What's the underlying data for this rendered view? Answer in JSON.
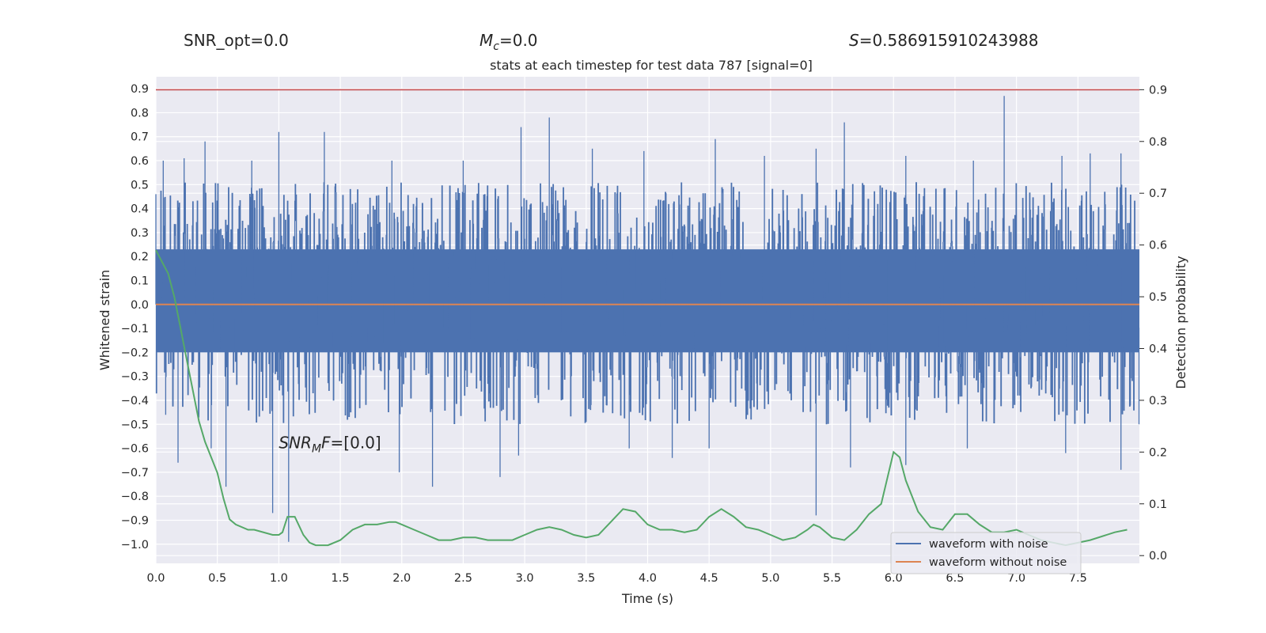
{
  "header": {
    "snr_opt": "SNR_opt=0.0",
    "mc_symbol": "M",
    "mc_sub": "c",
    "mc_value": "=0.0",
    "s_symbol": "S",
    "s_value": "=0.586915910243988"
  },
  "chart_data": {
    "type": "line",
    "title": "stats at each timestep for test data 787 [signal=0]",
    "xlabel": "Time (s)",
    "ylabel": "Whitened strain",
    "y2label": "Detection probability",
    "xlim": [
      0.0,
      8.0
    ],
    "ylim": [
      -1.08,
      0.95
    ],
    "y2lim": [
      -0.015,
      0.925
    ],
    "xticks": [
      "0.0",
      "0.5",
      "1.0",
      "1.5",
      "2.0",
      "2.5",
      "3.0",
      "3.5",
      "4.0",
      "4.5",
      "5.0",
      "5.5",
      "6.0",
      "6.5",
      "7.0",
      "7.5"
    ],
    "yticks": [
      "0.9",
      "0.8",
      "0.7",
      "0.6",
      "0.5",
      "0.4",
      "0.3",
      "0.2",
      "0.1",
      "0.0",
      "-0.1",
      "-0.2",
      "-0.3",
      "-0.4",
      "-0.5",
      "-0.6",
      "-0.7",
      "-0.8",
      "-0.9",
      "-1.0"
    ],
    "y2ticks": [
      "0.9",
      "0.8",
      "0.7",
      "0.6",
      "0.5",
      "0.4",
      "0.3",
      "0.2",
      "0.1",
      "0.0"
    ],
    "grid": true,
    "legend_position": "lower-right",
    "annotation": {
      "base": "SNR",
      "sub": "M",
      "italic_tail": "F",
      "value": "=[0.0]"
    },
    "series": [
      {
        "name": "waveform with noise",
        "color": "#4c72b0",
        "axis": "left",
        "description": "dense noise samples, core band about -0.2 to 0.23",
        "band": [
          -0.2,
          0.23
        ],
        "peaks_up": [
          [
            0.0,
            0.46
          ],
          [
            0.06,
            0.6
          ],
          [
            0.23,
            0.61
          ],
          [
            0.4,
            0.68
          ],
          [
            0.78,
            0.6
          ],
          [
            1.0,
            0.72
          ],
          [
            1.37,
            0.72
          ],
          [
            1.92,
            0.6
          ],
          [
            2.5,
            0.6
          ],
          [
            2.97,
            0.74
          ],
          [
            3.2,
            0.78
          ],
          [
            3.55,
            0.65
          ],
          [
            3.97,
            0.64
          ],
          [
            4.55,
            0.69
          ],
          [
            4.95,
            0.62
          ],
          [
            5.37,
            0.65
          ],
          [
            5.6,
            0.76
          ],
          [
            6.1,
            0.62
          ],
          [
            6.65,
            0.6
          ],
          [
            6.9,
            0.87
          ],
          [
            7.37,
            0.62
          ],
          [
            7.6,
            0.63
          ],
          [
            7.85,
            0.63
          ]
        ],
        "peaks_down": [
          [
            0.08,
            -0.46
          ],
          [
            0.18,
            -0.66
          ],
          [
            0.45,
            -0.6
          ],
          [
            0.57,
            -0.76
          ],
          [
            0.95,
            -0.87
          ],
          [
            1.08,
            -0.99
          ],
          [
            1.98,
            -0.7
          ],
          [
            2.25,
            -0.76
          ],
          [
            2.8,
            -0.72
          ],
          [
            2.95,
            -0.63
          ],
          [
            3.85,
            -0.6
          ],
          [
            4.2,
            -0.64
          ],
          [
            4.5,
            -0.6
          ],
          [
            5.37,
            -0.88
          ],
          [
            5.65,
            -0.68
          ],
          [
            6.1,
            -0.67
          ],
          [
            6.6,
            -0.6
          ],
          [
            7.4,
            -0.62
          ],
          [
            7.85,
            -0.69
          ]
        ]
      },
      {
        "name": "waveform without noise",
        "color": "#dd8452",
        "axis": "left",
        "x": [
          0.0,
          8.0
        ],
        "y": [
          0.0,
          0.0
        ]
      },
      {
        "name": "",
        "color": "#55a868",
        "axis": "right",
        "x": [
          0.0,
          0.1,
          0.15,
          0.2,
          0.25,
          0.3,
          0.35,
          0.4,
          0.5,
          0.55,
          0.6,
          0.65,
          0.75,
          0.8,
          0.95,
          1.0,
          1.03,
          1.07,
          1.13,
          1.2,
          1.25,
          1.3,
          1.35,
          1.4,
          1.5,
          1.6,
          1.7,
          1.8,
          1.9,
          1.95,
          2.0,
          2.1,
          2.2,
          2.3,
          2.4,
          2.5,
          2.6,
          2.7,
          2.8,
          2.9,
          3.0,
          3.1,
          3.2,
          3.3,
          3.4,
          3.5,
          3.6,
          3.7,
          3.8,
          3.9,
          4.0,
          4.1,
          4.2,
          4.3,
          4.4,
          4.5,
          4.6,
          4.7,
          4.8,
          4.9,
          5.0,
          5.1,
          5.2,
          5.3,
          5.35,
          5.4,
          5.5,
          5.6,
          5.7,
          5.8,
          5.9,
          6.0,
          6.05,
          6.1,
          6.2,
          6.3,
          6.4,
          6.5,
          6.6,
          6.7,
          6.8,
          6.9,
          7.0,
          7.2,
          7.4,
          7.6,
          7.8,
          7.9
        ],
        "y": [
          0.59,
          0.545,
          0.5,
          0.44,
          0.38,
          0.32,
          0.26,
          0.22,
          0.16,
          0.11,
          0.07,
          0.06,
          0.05,
          0.05,
          0.04,
          0.04,
          0.045,
          0.075,
          0.075,
          0.04,
          0.025,
          0.02,
          0.02,
          0.02,
          0.03,
          0.05,
          0.06,
          0.06,
          0.065,
          0.065,
          0.06,
          0.05,
          0.04,
          0.03,
          0.03,
          0.035,
          0.035,
          0.03,
          0.03,
          0.03,
          0.04,
          0.05,
          0.055,
          0.05,
          0.04,
          0.035,
          0.04,
          0.065,
          0.09,
          0.085,
          0.06,
          0.05,
          0.05,
          0.045,
          0.05,
          0.075,
          0.09,
          0.075,
          0.055,
          0.05,
          0.04,
          0.03,
          0.035,
          0.05,
          0.06,
          0.055,
          0.035,
          0.03,
          0.05,
          0.08,
          0.1,
          0.2,
          0.19,
          0.145,
          0.085,
          0.055,
          0.05,
          0.08,
          0.08,
          0.06,
          0.045,
          0.045,
          0.05,
          0.03,
          0.02,
          0.03,
          0.045,
          0.05
        ]
      },
      {
        "name": "",
        "color": "#c44e52",
        "axis": "right",
        "x": [
          0.0,
          8.0
        ],
        "y": [
          0.9,
          0.9
        ]
      }
    ]
  }
}
